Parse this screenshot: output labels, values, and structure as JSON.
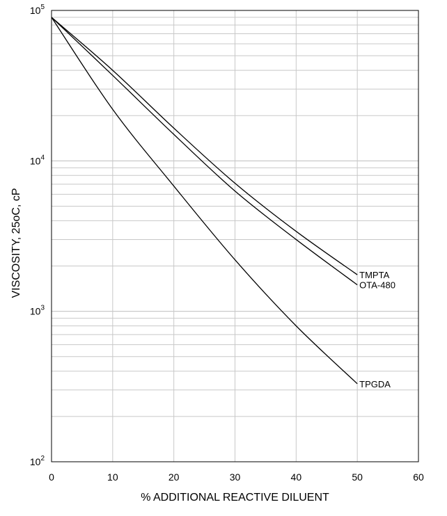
{
  "chart_data": {
    "type": "line",
    "title": "",
    "xlabel": "% ADDITIONAL REACTIVE DILUENT",
    "ylabel": "VISCOSITY, 25oC, cP",
    "xlim": [
      0,
      60
    ],
    "ylim": [
      100,
      100000
    ],
    "yscale": "log",
    "xticks": [
      "0",
      "10",
      "20",
      "30",
      "40",
      "50",
      "60"
    ],
    "yticks": [
      {
        "base": "10",
        "exp": "2"
      },
      {
        "base": "10",
        "exp": "3"
      },
      {
        "base": "10",
        "exp": "4"
      },
      {
        "base": "10",
        "exp": "5"
      }
    ],
    "grid": true,
    "legend": "direct labels at line ends",
    "colors": {
      "lines": "#000000",
      "grid": "#c8c8c8",
      "frame": "#000000"
    },
    "series": [
      {
        "name": "TMPTA",
        "x": [
          0,
          10,
          20,
          30,
          40,
          50
        ],
        "y": [
          90000,
          40000,
          16500,
          7100,
          3400,
          1750
        ]
      },
      {
        "name": "OTA-480",
        "x": [
          0,
          10,
          20,
          30,
          40,
          50
        ],
        "y": [
          90000,
          37000,
          15000,
          6300,
          3000,
          1500
        ]
      },
      {
        "name": "TPGDA",
        "x": [
          0,
          10,
          20,
          30,
          40,
          50
        ],
        "y": [
          90000,
          22000,
          6800,
          2200,
          800,
          330
        ]
      }
    ]
  }
}
